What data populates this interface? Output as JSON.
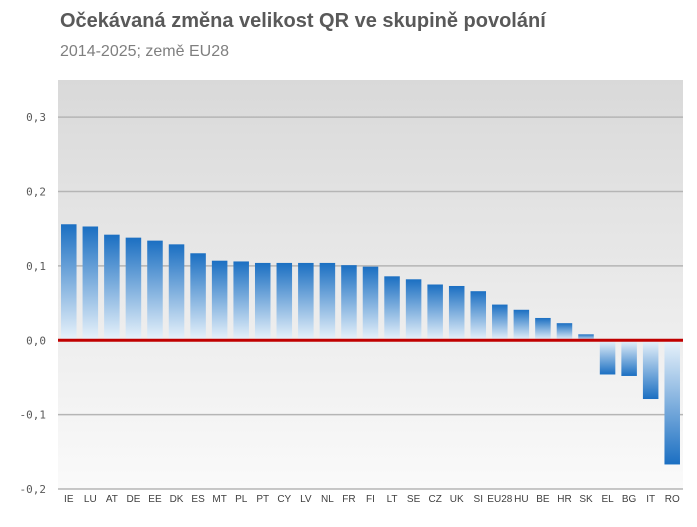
{
  "title": "Očekávaná změna velikost QR ve skupině povolání",
  "subtitle": "2014-2025; země EU28",
  "colors": {
    "bar_top": "#1b6fc2",
    "bar_bottom": "#e9f3fb",
    "zero_line": "#c00000",
    "plot_bg_top": "#d9d9d9",
    "plot_bg_bottom": "#fafafa",
    "grid": "#b5b5b5"
  },
  "chart_data": {
    "type": "bar",
    "categories": [
      "IE",
      "LU",
      "AT",
      "DE",
      "EE",
      "DK",
      "ES",
      "MT",
      "PL",
      "PT",
      "CY",
      "LV",
      "NL",
      "FR",
      "FI",
      "LT",
      "SE",
      "CZ",
      "UK",
      "SI",
      "EU28",
      "HU",
      "BE",
      "HR",
      "SK",
      "EL",
      "BG",
      "IT",
      "RO"
    ],
    "values": [
      0.156,
      0.153,
      0.142,
      0.138,
      0.134,
      0.129,
      0.117,
      0.107,
      0.106,
      0.104,
      0.104,
      0.104,
      0.104,
      0.101,
      0.099,
      0.086,
      0.082,
      0.075,
      0.073,
      0.066,
      0.048,
      0.041,
      0.03,
      0.023,
      0.008,
      -0.046,
      -0.048,
      -0.079,
      -0.167
    ],
    "ylim": [
      -0.2,
      0.35
    ],
    "yticks": [
      -0.2,
      -0.1,
      0.0,
      0.1,
      0.2,
      0.3
    ],
    "ytick_labels": [
      "-0,2",
      "-0,1",
      "0,0",
      "0,1",
      "0,2",
      "0,3"
    ],
    "grid": true,
    "xlabel": "",
    "ylabel": ""
  }
}
